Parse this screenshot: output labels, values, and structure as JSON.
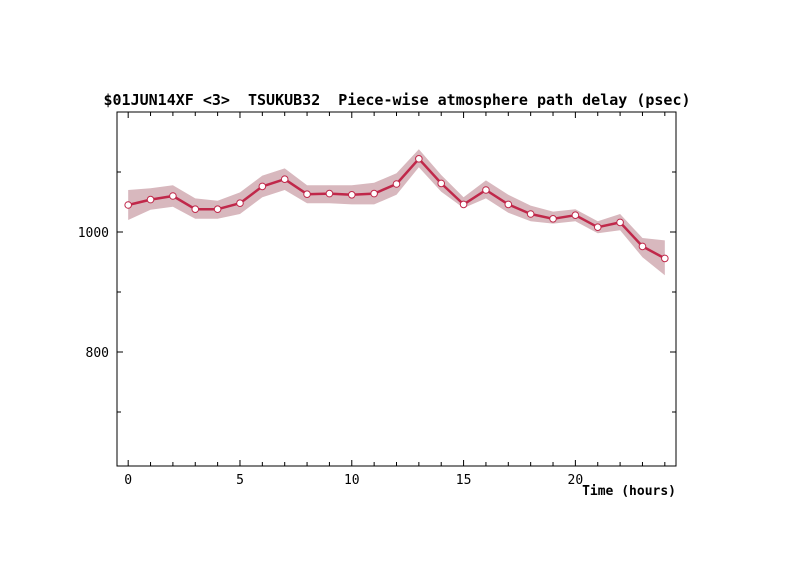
{
  "chart_data": {
    "type": "line",
    "title": "$01JUN14XF <3>  TSUKUB32  Piece-wise atmosphere path delay (psec)",
    "xlabel": "Time (hours)",
    "ylabel": "",
    "xlim": [
      -0.5,
      24.5
    ],
    "ylim": [
      610,
      1200
    ],
    "x_ticks": [
      0,
      5,
      10,
      15,
      20
    ],
    "x_minor_ticks": [
      0,
      1,
      2,
      3,
      4,
      5,
      6,
      7,
      8,
      9,
      10,
      11,
      12,
      13,
      14,
      15,
      16,
      17,
      18,
      19,
      20,
      21,
      22,
      23,
      24
    ],
    "y_ticks": [
      800,
      1000
    ],
    "y_minor_ticks": [
      700,
      900,
      1100
    ],
    "grid": false,
    "colors": {
      "line": "#c0284a",
      "band": "#d8b8be",
      "marker_fill": "#ffffff"
    },
    "series": [
      {
        "x": [
          0,
          1,
          2,
          3,
          4,
          5,
          6,
          7,
          8,
          9,
          10,
          11,
          12,
          13,
          14,
          15,
          16,
          17,
          18,
          19,
          20,
          21,
          22,
          23,
          24
        ],
        "values": [
          1045,
          1054,
          1060,
          1038,
          1038,
          1048,
          1076,
          1088,
          1063,
          1064,
          1062,
          1064,
          1080,
          1122,
          1081,
          1046,
          1070,
          1046,
          1030,
          1022,
          1028,
          1008,
          1016,
          976,
          956
        ],
        "lower": [
          1020,
          1037,
          1042,
          1022,
          1022,
          1030,
          1058,
          1070,
          1048,
          1048,
          1046,
          1046,
          1062,
          1108,
          1067,
          1040,
          1056,
          1032,
          1018,
          1014,
          1018,
          998,
          1003,
          958,
          928
        ],
        "upper": [
          1070,
          1073,
          1078,
          1056,
          1052,
          1066,
          1094,
          1106,
          1078,
          1078,
          1078,
          1082,
          1098,
          1138,
          1095,
          1058,
          1086,
          1062,
          1044,
          1034,
          1038,
          1018,
          1030,
          990,
          986
        ]
      }
    ]
  }
}
